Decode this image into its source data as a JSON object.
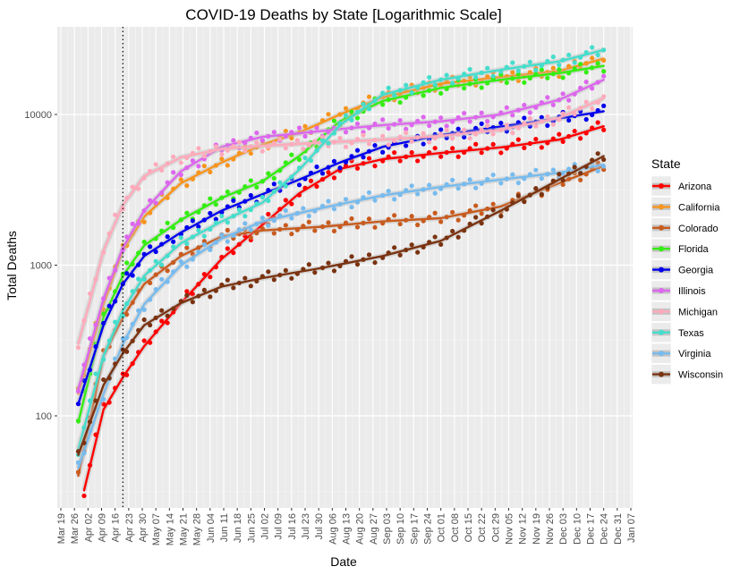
{
  "chart_data": {
    "type": "line",
    "title": "COVID-19 Deaths by State [Logarithmic Scale]",
    "xlabel": "Date",
    "ylabel": "Total Deaths",
    "y_scale": "log10",
    "ylim": [
      25,
      38000
    ],
    "xlim": [
      "2020-03-19",
      "2021-01-07"
    ],
    "x_ticks": [
      "Mar 19",
      "Mar 26",
      "Apr 02",
      "Apr 09",
      "Apr 16",
      "Apr 23",
      "Apr 30",
      "May 07",
      "May 14",
      "May 21",
      "May 28",
      "Jun 04",
      "Jun 11",
      "Jun 18",
      "Jun 25",
      "Jul 02",
      "Jul 09",
      "Jul 16",
      "Jul 23",
      "Jul 30",
      "Aug 06",
      "Aug 13",
      "Aug 20",
      "Aug 27",
      "Sep 03",
      "Sep 10",
      "Sep 17",
      "Sep 24",
      "Oct 01",
      "Oct 08",
      "Oct 15",
      "Oct 22",
      "Oct 29",
      "Nov 05",
      "Nov 12",
      "Nov 19",
      "Nov 26",
      "Dec 03",
      "Dec 10",
      "Dec 17",
      "Dec 24",
      "Dec 31",
      "Jan 07"
    ],
    "y_ticks": [
      {
        "value": 100,
        "label": "100"
      },
      {
        "value": 1000,
        "label": "1000"
      },
      {
        "value": 10000,
        "label": "10000"
      }
    ],
    "reference_line": {
      "date": "2020-04-20",
      "style": "dotted"
    },
    "grid": true,
    "legend": {
      "title": "State",
      "position": "right"
    },
    "series": [
      {
        "name": "Arizona",
        "color": "#ff0000",
        "points": [
          [
            "2020-03-31",
            32
          ],
          [
            "2020-04-10",
            110
          ],
          [
            "2020-04-20",
            180
          ],
          [
            "2020-05-01",
            290
          ],
          [
            "2020-05-20",
            560
          ],
          [
            "2020-06-10",
            1100
          ],
          [
            "2020-07-01",
            1850
          ],
          [
            "2020-07-20",
            3000
          ],
          [
            "2020-08-10",
            4350
          ],
          [
            "2020-09-01",
            5050
          ],
          [
            "2020-10-01",
            5550
          ],
          [
            "2020-11-01",
            6050
          ],
          [
            "2020-12-01",
            6800
          ],
          [
            "2020-12-24",
            8350
          ]
        ]
      },
      {
        "name": "California",
        "color": "#f7941d",
        "points": [
          [
            "2020-03-28",
            140
          ],
          [
            "2020-04-10",
            550
          ],
          [
            "2020-04-20",
            1250
          ],
          [
            "2020-05-01",
            2100
          ],
          [
            "2020-05-20",
            3500
          ],
          [
            "2020-06-10",
            4800
          ],
          [
            "2020-07-01",
            6300
          ],
          [
            "2020-07-20",
            7600
          ],
          [
            "2020-08-10",
            10000
          ],
          [
            "2020-09-01",
            13000
          ],
          [
            "2020-10-01",
            16000
          ],
          [
            "2020-11-01",
            17700
          ],
          [
            "2020-12-01",
            19400
          ],
          [
            "2020-12-24",
            23500
          ]
        ]
      },
      {
        "name": "Colorado",
        "color": "#c85b1e",
        "points": [
          [
            "2020-03-28",
            40
          ],
          [
            "2020-04-10",
            250
          ],
          [
            "2020-04-20",
            450
          ],
          [
            "2020-05-01",
            750
          ],
          [
            "2020-05-20",
            1150
          ],
          [
            "2020-06-10",
            1550
          ],
          [
            "2020-07-01",
            1700
          ],
          [
            "2020-08-01",
            1800
          ],
          [
            "2020-09-01",
            1950
          ],
          [
            "2020-10-01",
            2050
          ],
          [
            "2020-11-01",
            2450
          ],
          [
            "2020-12-01",
            3500
          ],
          [
            "2020-12-24",
            4550
          ]
        ]
      },
      {
        "name": "Florida",
        "color": "#33ee11",
        "points": [
          [
            "2020-03-28",
            90
          ],
          [
            "2020-04-10",
            450
          ],
          [
            "2020-04-20",
            850
          ],
          [
            "2020-05-01",
            1350
          ],
          [
            "2020-05-20",
            2000
          ],
          [
            "2020-06-10",
            2800
          ],
          [
            "2020-07-01",
            3600
          ],
          [
            "2020-07-20",
            5300
          ],
          [
            "2020-08-10",
            9000
          ],
          [
            "2020-09-01",
            12300
          ],
          [
            "2020-10-01",
            15000
          ],
          [
            "2020-11-01",
            17000
          ],
          [
            "2020-12-01",
            18800
          ],
          [
            "2020-12-24",
            21000
          ]
        ]
      },
      {
        "name": "Georgia",
        "color": "#0000ee",
        "points": [
          [
            "2020-03-28",
            120
          ],
          [
            "2020-04-10",
            400
          ],
          [
            "2020-04-20",
            750
          ],
          [
            "2020-05-01",
            1150
          ],
          [
            "2020-05-20",
            1650
          ],
          [
            "2020-06-10",
            2300
          ],
          [
            "2020-07-01",
            2950
          ],
          [
            "2020-07-20",
            3700
          ],
          [
            "2020-08-10",
            4800
          ],
          [
            "2020-09-01",
            6100
          ],
          [
            "2020-10-01",
            7300
          ],
          [
            "2020-11-01",
            8300
          ],
          [
            "2020-12-01",
            9400
          ],
          [
            "2020-12-24",
            10500
          ]
        ]
      },
      {
        "name": "Illinois",
        "color": "#dd66ee",
        "points": [
          [
            "2020-03-28",
            150
          ],
          [
            "2020-04-10",
            600
          ],
          [
            "2020-04-20",
            1300
          ],
          [
            "2020-05-01",
            2300
          ],
          [
            "2020-05-20",
            4200
          ],
          [
            "2020-06-10",
            6100
          ],
          [
            "2020-07-01",
            7100
          ],
          [
            "2020-07-20",
            7500
          ],
          [
            "2020-08-10",
            8000
          ],
          [
            "2020-09-01",
            8500
          ],
          [
            "2020-10-01",
            9000
          ],
          [
            "2020-11-01",
            10000
          ],
          [
            "2020-12-01",
            12500
          ],
          [
            "2020-12-24",
            17000
          ]
        ]
      },
      {
        "name": "Michigan",
        "color": "#ffaabb",
        "points": [
          [
            "2020-03-28",
            300
          ],
          [
            "2020-04-10",
            1250
          ],
          [
            "2020-04-20",
            2500
          ],
          [
            "2020-05-01",
            3900
          ],
          [
            "2020-05-20",
            5200
          ],
          [
            "2020-06-10",
            5900
          ],
          [
            "2020-07-01",
            6200
          ],
          [
            "2020-08-01",
            6500
          ],
          [
            "2020-09-01",
            6800
          ],
          [
            "2020-10-01",
            7200
          ],
          [
            "2020-11-01",
            7900
          ],
          [
            "2020-12-01",
            9500
          ],
          [
            "2020-12-24",
            12800
          ]
        ]
      },
      {
        "name": "Texas",
        "color": "#44ddcc",
        "points": [
          [
            "2020-03-28",
            60
          ],
          [
            "2020-04-10",
            250
          ],
          [
            "2020-04-20",
            500
          ],
          [
            "2020-05-01",
            850
          ],
          [
            "2020-05-20",
            1400
          ],
          [
            "2020-06-10",
            1950
          ],
          [
            "2020-07-01",
            2600
          ],
          [
            "2020-07-20",
            4300
          ],
          [
            "2020-08-10",
            8500
          ],
          [
            "2020-09-01",
            13500
          ],
          [
            "2020-10-01",
            17000
          ],
          [
            "2020-11-01",
            19800
          ],
          [
            "2020-12-01",
            22500
          ],
          [
            "2020-12-24",
            26800
          ]
        ]
      },
      {
        "name": "Virginia",
        "color": "#77bbee",
        "points": [
          [
            "2020-03-28",
            45
          ],
          [
            "2020-04-10",
            140
          ],
          [
            "2020-04-20",
            300
          ],
          [
            "2020-05-01",
            550
          ],
          [
            "2020-05-20",
            1000
          ],
          [
            "2020-06-10",
            1500
          ],
          [
            "2020-07-01",
            1950
          ],
          [
            "2020-08-01",
            2400
          ],
          [
            "2020-09-01",
            2900
          ],
          [
            "2020-10-01",
            3300
          ],
          [
            "2020-11-01",
            3700
          ],
          [
            "2020-12-01",
            4100
          ],
          [
            "2020-12-24",
            4650
          ]
        ]
      },
      {
        "name": "Wisconsin",
        "color": "#7a3311",
        "points": [
          [
            "2020-03-28",
            55
          ],
          [
            "2020-04-10",
            160
          ],
          [
            "2020-04-20",
            260
          ],
          [
            "2020-05-01",
            400
          ],
          [
            "2020-05-20",
            560
          ],
          [
            "2020-06-10",
            720
          ],
          [
            "2020-07-01",
            820
          ],
          [
            "2020-08-01",
            960
          ],
          [
            "2020-09-01",
            1150
          ],
          [
            "2020-10-01",
            1450
          ],
          [
            "2020-11-01",
            2300
          ],
          [
            "2020-12-01",
            3700
          ],
          [
            "2020-12-24",
            5300
          ]
        ]
      }
    ]
  }
}
